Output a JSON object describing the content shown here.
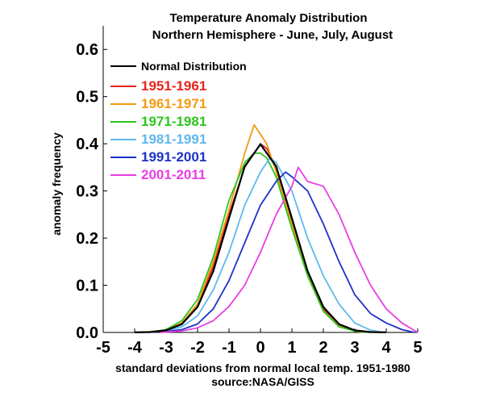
{
  "chart_data": {
    "type": "line",
    "title": "Temperature Anomaly Distribution",
    "subtitle": "Northern Hemisphere - June, July, August",
    "xlabel": "standard deviations from normal local temp. 1951-1980",
    "source": "source:NASA/GISS",
    "ylabel": "anomaly frequency",
    "xlim": [
      -5,
      5
    ],
    "ylim": [
      0,
      0.65
    ],
    "xticks": [
      -5,
      -4,
      -3,
      -2,
      -1,
      0,
      1,
      2,
      3,
      4,
      5
    ],
    "yticks": [
      0.0,
      0.1,
      0.2,
      0.3,
      0.4,
      0.5,
      0.6
    ],
    "xtick_labels": [
      "-5",
      "-4",
      "-3",
      "-2",
      "-1",
      "0",
      "1",
      "2",
      "3",
      "4",
      "5"
    ],
    "ytick_labels": [
      "0.0",
      "0.1",
      "0.2",
      "0.3",
      "0.4",
      "0.5",
      "0.6"
    ],
    "legend_placement": "top-left",
    "grid": false,
    "series": [
      {
        "name": "Normal Distribution",
        "color": "#000000",
        "x": [
          -4.0,
          -3.5,
          -3.0,
          -2.5,
          -2.0,
          -1.5,
          -1.0,
          -0.5,
          0.0,
          0.5,
          1.0,
          1.5,
          2.0,
          2.5,
          3.0,
          3.5,
          4.0
        ],
        "y": [
          0.0001,
          0.0009,
          0.0044,
          0.0175,
          0.054,
          0.13,
          0.242,
          0.352,
          0.399,
          0.352,
          0.242,
          0.13,
          0.054,
          0.0175,
          0.0044,
          0.0009,
          0.0001
        ]
      },
      {
        "name": "1951-1961",
        "color": "#e8231c",
        "x": [
          -3.6,
          -3.0,
          -2.5,
          -2.0,
          -1.5,
          -1.0,
          -0.5,
          -0.2,
          0.0,
          0.2,
          0.5,
          1.0,
          1.5,
          2.0,
          2.5,
          3.0,
          3.5
        ],
        "y": [
          0.0,
          0.005,
          0.02,
          0.06,
          0.14,
          0.25,
          0.35,
          0.38,
          0.4,
          0.39,
          0.35,
          0.24,
          0.13,
          0.05,
          0.015,
          0.004,
          0.0
        ]
      },
      {
        "name": "1961-1971",
        "color": "#f29a12",
        "x": [
          -3.8,
          -3.0,
          -2.5,
          -2.0,
          -1.5,
          -1.0,
          -0.5,
          -0.2,
          0.0,
          0.2,
          0.5,
          1.0,
          1.5,
          2.0,
          2.5,
          3.0,
          3.3
        ],
        "y": [
          0.0,
          0.005,
          0.02,
          0.06,
          0.15,
          0.26,
          0.38,
          0.44,
          0.42,
          0.4,
          0.34,
          0.23,
          0.12,
          0.045,
          0.015,
          0.003,
          0.0
        ]
      },
      {
        "name": "1971-1981",
        "color": "#2ec41f",
        "x": [
          -3.6,
          -3.0,
          -2.5,
          -2.0,
          -1.5,
          -1.0,
          -0.5,
          -0.2,
          0.0,
          0.2,
          0.5,
          1.0,
          1.5,
          2.0,
          2.5,
          3.0,
          3.4
        ],
        "y": [
          0.0,
          0.006,
          0.025,
          0.07,
          0.16,
          0.28,
          0.36,
          0.38,
          0.38,
          0.37,
          0.33,
          0.22,
          0.12,
          0.045,
          0.012,
          0.003,
          0.0
        ]
      },
      {
        "name": "1981-1991",
        "color": "#5fb8ee",
        "x": [
          -3.6,
          -3.0,
          -2.5,
          -2.0,
          -1.5,
          -1.0,
          -0.5,
          0.0,
          0.3,
          0.5,
          1.0,
          1.5,
          2.0,
          2.5,
          3.0,
          3.5,
          3.9
        ],
        "y": [
          0.0,
          0.003,
          0.012,
          0.035,
          0.09,
          0.17,
          0.27,
          0.34,
          0.37,
          0.36,
          0.3,
          0.2,
          0.12,
          0.06,
          0.02,
          0.005,
          0.0
        ]
      },
      {
        "name": "1991-2001",
        "color": "#1c32c7",
        "x": [
          -4.0,
          -3.0,
          -2.5,
          -2.0,
          -1.5,
          -1.0,
          -0.5,
          0.0,
          0.5,
          0.8,
          1.0,
          1.5,
          2.0,
          2.5,
          3.0,
          3.5,
          4.0,
          4.5,
          4.9
        ],
        "y": [
          0.0,
          0.002,
          0.006,
          0.018,
          0.05,
          0.11,
          0.19,
          0.27,
          0.32,
          0.34,
          0.33,
          0.3,
          0.23,
          0.15,
          0.08,
          0.04,
          0.02,
          0.006,
          0.0
        ]
      },
      {
        "name": "2001-2011",
        "color": "#ea3de4",
        "x": [
          -3.2,
          -2.5,
          -2.0,
          -1.5,
          -1.0,
          -0.5,
          0.0,
          0.5,
          1.0,
          1.2,
          1.5,
          2.0,
          2.5,
          3.0,
          3.5,
          4.0,
          4.5,
          5.0
        ],
        "y": [
          0.0,
          0.003,
          0.01,
          0.025,
          0.055,
          0.1,
          0.17,
          0.25,
          0.31,
          0.35,
          0.32,
          0.31,
          0.25,
          0.17,
          0.1,
          0.05,
          0.02,
          0.0
        ]
      }
    ]
  }
}
